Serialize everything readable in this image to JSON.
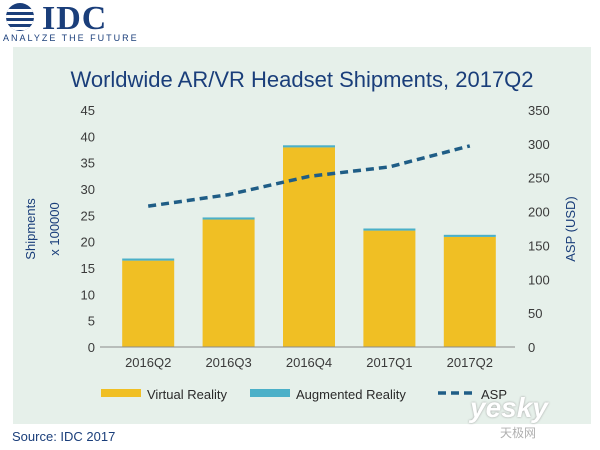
{
  "header": {
    "logo_text": "IDC",
    "tagline": "ANALYZE THE FUTURE"
  },
  "source": "Source: IDC 2017",
  "watermark": {
    "main": "yesky",
    "sub": "天极网"
  },
  "colors": {
    "vr": "#f0bf24",
    "ar": "#4bb0c8",
    "asp": "#1f5d86",
    "brand": "#1a3e7a",
    "panel": "#e6f0ea"
  },
  "chart_data": {
    "type": "bar",
    "title": "Worldwide AR/VR Headset Shipments, 2017Q2",
    "categories": [
      "2016Q2",
      "2016Q3",
      "2016Q4",
      "2017Q1",
      "2017Q2"
    ],
    "series": [
      {
        "name": "Virtual Reality",
        "type": "bar",
        "stacked": true,
        "axis": "left",
        "values": [
          16.4,
          24.2,
          37.9,
          22.1,
          20.9
        ]
      },
      {
        "name": "Augmented Reality",
        "type": "bar",
        "stacked": true,
        "axis": "left",
        "values": [
          0.4,
          0.4,
          0.4,
          0.4,
          0.4
        ]
      },
      {
        "name": "ASP",
        "type": "line",
        "style": "dashed",
        "axis": "right",
        "values": [
          208,
          225,
          252,
          266,
          297
        ]
      }
    ],
    "ylabel": [
      "Shipments",
      "x 100000"
    ],
    "y2label": "ASP (USD)",
    "ylim": [
      0,
      45
    ],
    "y2lim": [
      0,
      350
    ],
    "yticks": [
      "0",
      "5",
      "10",
      "15",
      "20",
      "25",
      "30",
      "35",
      "40",
      "45"
    ],
    "y2ticks": [
      "0",
      "50",
      "100",
      "150",
      "200",
      "250",
      "300",
      "350"
    ],
    "legend_position": "bottom",
    "grid": false
  }
}
